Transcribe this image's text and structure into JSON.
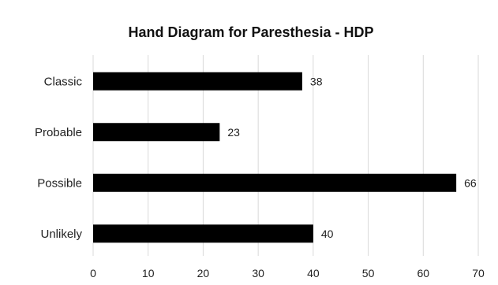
{
  "chart_data": {
    "type": "bar",
    "orientation": "horizontal",
    "title": "Hand Diagram for Paresthesia - HDP",
    "categories": [
      "Classic",
      "Probable",
      "Possible",
      "Unlikely"
    ],
    "values": [
      38,
      23,
      66,
      40
    ],
    "data_labels": [
      "38",
      "23",
      "66",
      "40"
    ],
    "xlim": [
      0,
      70
    ],
    "x_ticks": [
      "0",
      "10",
      "20",
      "30",
      "40",
      "50",
      "60",
      "70"
    ],
    "xlabel": "",
    "ylabel": "",
    "grid": "vertical",
    "legend": "none",
    "bar_color": "#000000",
    "grid_color": "#d9d9d9"
  }
}
